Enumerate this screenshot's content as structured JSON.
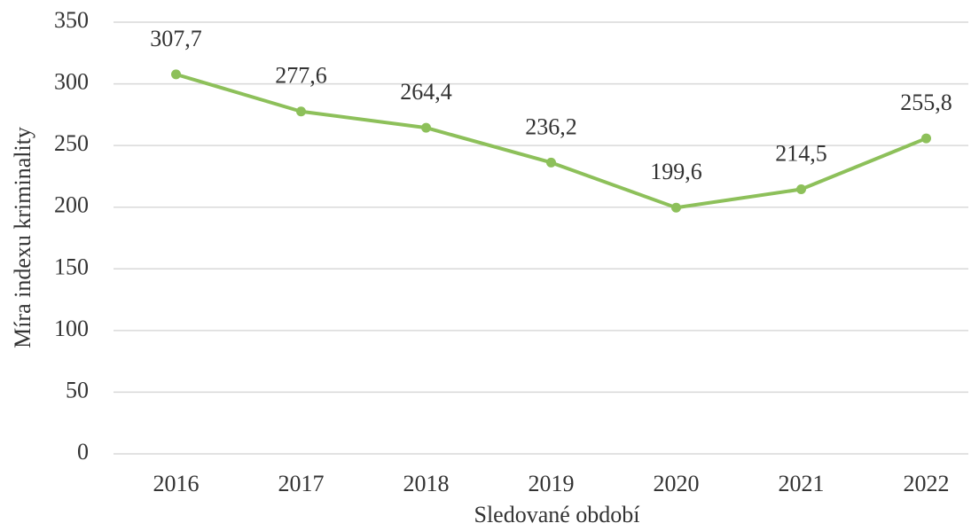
{
  "chart_data": {
    "type": "line",
    "x_label": "Sledované období",
    "y_label": "Míra indexu kriminality",
    "categories": [
      "2016",
      "2017",
      "2018",
      "2019",
      "2020",
      "2021",
      "2022"
    ],
    "series": [
      {
        "name": "Míra indexu kriminality",
        "color": "#8dc05a",
        "values": [
          307.7,
          277.6,
          264.4,
          236.2,
          199.6,
          214.5,
          255.8
        ],
        "value_labels": [
          "307,7",
          "277,6",
          "264,4",
          "236,2",
          "199,6",
          "214,5",
          "255,8"
        ]
      }
    ],
    "ylim": [
      0,
      350
    ],
    "yticks": [
      0,
      50,
      100,
      150,
      200,
      250,
      300,
      350
    ],
    "grid": true
  }
}
